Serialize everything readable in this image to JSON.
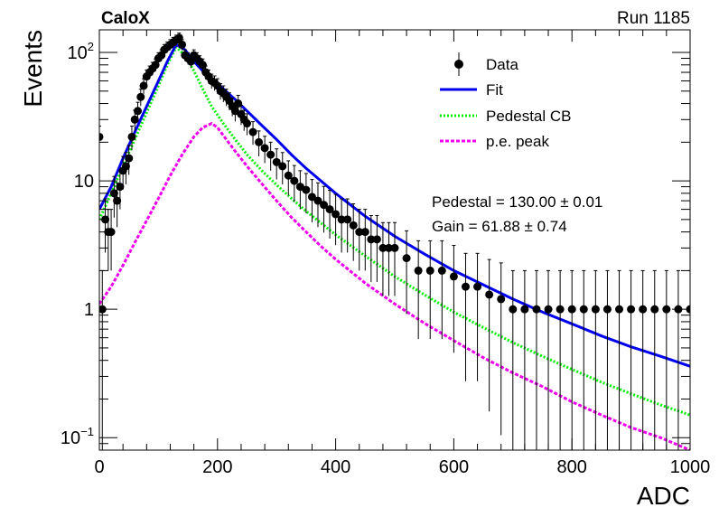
{
  "header": {
    "experiment": "CaloX",
    "run": "Run 1185"
  },
  "stats": {
    "pedestal": "Pedestal = 130.00 ± 0.01",
    "gain": "Gain = 61.88 ± 0.74"
  },
  "chart_data": {
    "type": "scatter",
    "xlabel": "ADC",
    "ylabel": "Events",
    "xlim": [
      0,
      1000
    ],
    "ylim": [
      0.08,
      150
    ],
    "yscale": "log",
    "x_ticks": [
      "0",
      "200",
      "400",
      "600",
      "800",
      "1000"
    ],
    "y_ticks": [
      {
        "value": 0.1,
        "base": "10",
        "exp": "−1"
      },
      {
        "value": 1,
        "label": "1"
      },
      {
        "value": 10,
        "label": "10"
      },
      {
        "value": 100,
        "base": "10",
        "exp": "2"
      }
    ],
    "legend": {
      "position": "top-right",
      "entries": [
        "Data",
        "Fit",
        "Pedestal CB",
        "p.e. peak"
      ]
    },
    "colors": {
      "data": "#000000",
      "fit": "#0000ee",
      "pedestal": "#00ee00",
      "pe": "#ee00ee"
    },
    "series": [
      {
        "name": "Data",
        "kind": "points_with_errors",
        "x": [
          0,
          5,
          10,
          15,
          20,
          25,
          30,
          35,
          40,
          45,
          50,
          55,
          60,
          65,
          70,
          75,
          80,
          85,
          90,
          95,
          100,
          105,
          110,
          115,
          120,
          125,
          130,
          135,
          140,
          145,
          150,
          155,
          160,
          165,
          170,
          175,
          180,
          185,
          190,
          195,
          200,
          205,
          210,
          215,
          220,
          225,
          230,
          235,
          240,
          245,
          250,
          260,
          270,
          280,
          290,
          300,
          310,
          320,
          330,
          340,
          350,
          360,
          370,
          380,
          390,
          400,
          410,
          420,
          430,
          440,
          450,
          460,
          470,
          480,
          490,
          500,
          520,
          540,
          560,
          580,
          600,
          620,
          640,
          660,
          680,
          700,
          720,
          740,
          760,
          780,
          800,
          820,
          840,
          860,
          880,
          900,
          920,
          940,
          960,
          980,
          1000
        ],
        "y": [
          22,
          1,
          5,
          4,
          4,
          8,
          7,
          9,
          12,
          13,
          15,
          22,
          30,
          35,
          45,
          55,
          65,
          70,
          75,
          80,
          90,
          95,
          105,
          110,
          115,
          120,
          125,
          130,
          115,
          95,
          90,
          85,
          95,
          90,
          85,
          80,
          70,
          65,
          60,
          58,
          55,
          50,
          48,
          45,
          42,
          38,
          35,
          40,
          33,
          30,
          28,
          24,
          20,
          18,
          16,
          14,
          13,
          11,
          10,
          9,
          8.5,
          7.5,
          7,
          6.5,
          6,
          5.5,
          5,
          5,
          4.5,
          4,
          4,
          3.5,
          3.5,
          3,
          3,
          3,
          2.5,
          2,
          2,
          2,
          1.8,
          1.5,
          1.5,
          1.3,
          1.2,
          1,
          1,
          1,
          1,
          1,
          1,
          1,
          1,
          1,
          1,
          1,
          1,
          1,
          1,
          1,
          1
        ]
      },
      {
        "name": "Fit",
        "kind": "line",
        "x": [
          0,
          20,
          40,
          60,
          80,
          100,
          115,
          130,
          145,
          160,
          175,
          190,
          210,
          230,
          250,
          275,
          300,
          325,
          350,
          375,
          400,
          450,
          500,
          550,
          600,
          650,
          700,
          750,
          800,
          850,
          900,
          950,
          1000
        ],
        "y": [
          6,
          9,
          15,
          24,
          38,
          60,
          85,
          115,
          105,
          85,
          72,
          62,
          52,
          43,
          35,
          27,
          21,
          16,
          12.5,
          10,
          8,
          5.3,
          3.7,
          2.7,
          2.0,
          1.55,
          1.2,
          0.95,
          0.77,
          0.62,
          0.51,
          0.43,
          0.36
        ]
      },
      {
        "name": "Pedestal CB",
        "kind": "line",
        "x": [
          0,
          20,
          40,
          60,
          80,
          100,
          115,
          130,
          145,
          160,
          175,
          190,
          210,
          230,
          250,
          275,
          300,
          325,
          350,
          375,
          400,
          450,
          500,
          550,
          600,
          650,
          700,
          750,
          800,
          850,
          900,
          950,
          1000
        ],
        "y": [
          5,
          8,
          13,
          21,
          34,
          55,
          80,
          110,
          95,
          72,
          52,
          38,
          28,
          21,
          16,
          12,
          9.3,
          7.3,
          5.8,
          4.7,
          3.8,
          2.6,
          1.8,
          1.3,
          0.95,
          0.72,
          0.55,
          0.43,
          0.34,
          0.27,
          0.22,
          0.18,
          0.15
        ]
      },
      {
        "name": "p.e. peak",
        "kind": "line",
        "x": [
          0,
          20,
          40,
          60,
          80,
          100,
          120,
          140,
          160,
          175,
          190,
          200,
          215,
          230,
          250,
          275,
          300,
          325,
          350,
          375,
          400,
          450,
          500,
          550,
          600,
          650,
          700,
          750,
          800,
          850,
          900,
          950,
          1000
        ],
        "y": [
          1.1,
          1.5,
          2.2,
          3.3,
          4.9,
          7.3,
          11,
          16,
          22,
          26,
          28,
          26,
          21,
          17,
          13,
          9.5,
          7,
          5.2,
          4.0,
          3.1,
          2.45,
          1.6,
          1.1,
          0.78,
          0.57,
          0.42,
          0.32,
          0.25,
          0.19,
          0.15,
          0.12,
          0.1,
          0.08
        ]
      }
    ]
  }
}
